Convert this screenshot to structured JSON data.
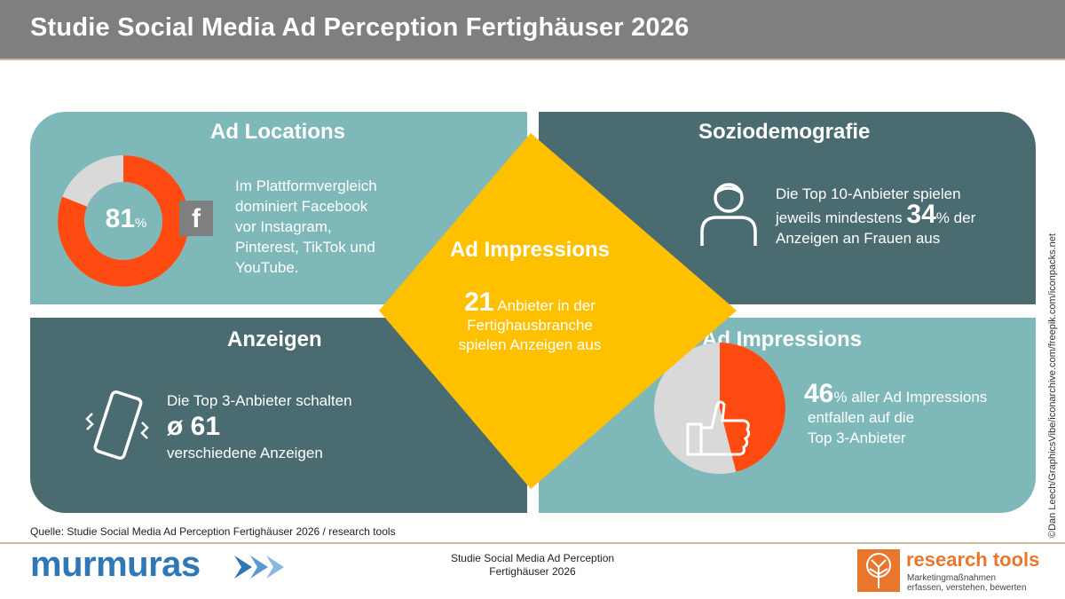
{
  "header": {
    "title": "Studie Social Media Ad Perception Fertighäuser 2026"
  },
  "ad_locations": {
    "title": "Ad Locations",
    "percent": "81",
    "percent_unit": "%",
    "share": 0.81,
    "icon_letter": "f",
    "text": [
      "Im Plattformvergleich",
      "dominiert Facebook",
      "vor Instagram,",
      "Pinterest, TikTok und",
      "YouTube."
    ],
    "colors": {
      "fill": "#ff4b12",
      "rest": "#d9d9d9"
    }
  },
  "soziodemografie": {
    "title": "Soziodemografie",
    "line1": "Die Top 10-Anbieter spielen",
    "line2_pre": "jeweils mindestens",
    "value": "34",
    "unit": "%",
    "line2_post": "der",
    "line3": "Anzeigen  an Frauen aus"
  },
  "anzeigen": {
    "title": "Anzeigen",
    "line1": "Die Top 3-Anbieter schalten",
    "value": "ø 61",
    "line3": "verschiedene Anzeigen"
  },
  "ad_impressions_right": {
    "title": "Ad Impressions",
    "value": "46",
    "unit": "%",
    "line1_post": " aller Ad Impressions",
    "line2": "entfallen auf die",
    "line3": "Top 3-Anbieter",
    "share": 0.46,
    "colors": {
      "fill": "#ff4b12",
      "rest": "#d9d9d9"
    }
  },
  "ad_impressions_center": {
    "title": "Ad Impressions",
    "value": "21",
    "line1_post": "Anbieter in der",
    "line2": "Fertighausbranche",
    "line3": "spielen Anzeigen  aus",
    "color": "#ffc000"
  },
  "source": "Quelle:  Studie Social Media Ad Perception Fertighäuser 2026 / research tools",
  "footer": {
    "center_line1": "Studie Social Media Ad Perception",
    "center_line2": "Fertighäuser 2026",
    "logo_left": "murmuras",
    "logo_right_name": "research tools",
    "logo_right_tag1": "Marketingmaßnahmen",
    "logo_right_tag2": "erfassen, verstehen, bewerten"
  },
  "credit": "©Dan Leech/GraphicsVibe/iconarchive.com/freepik.com/iconpacks.net",
  "icons": [
    "facebook-icon",
    "person-icon",
    "vibrating-phone-icon",
    "thumbs-up-icon",
    "murmuras-arrow-icon",
    "tree-logo-icon"
  ]
}
